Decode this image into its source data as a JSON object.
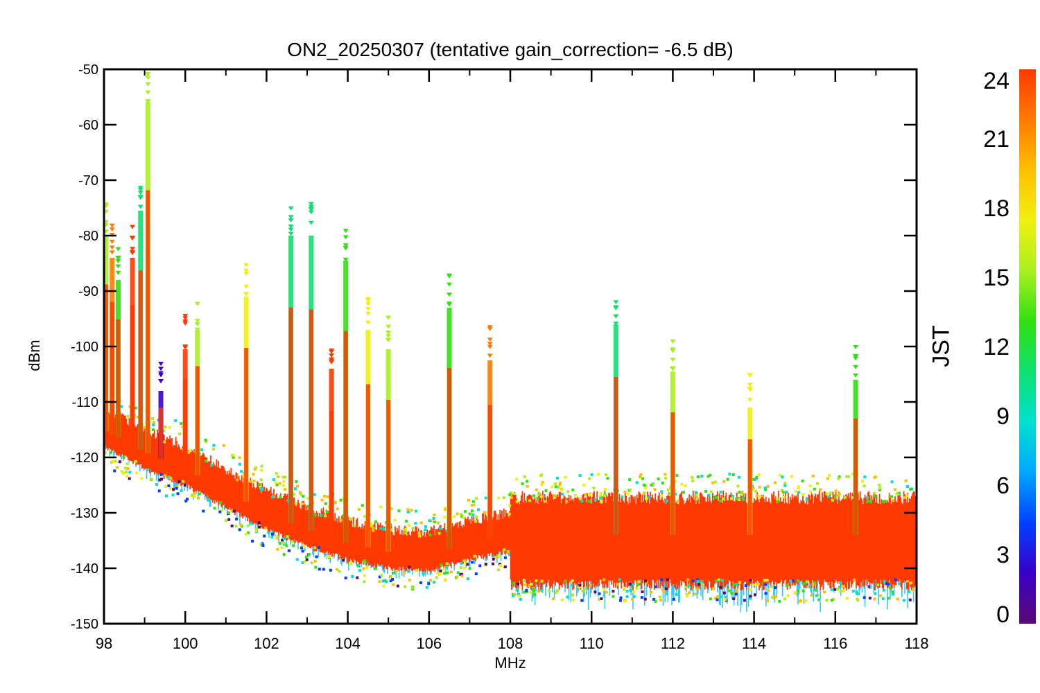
{
  "chart_data": {
    "type": "scatter",
    "title": "ON2_20250307 (tentative gain_correction= -6.5 dB)",
    "xlabel": "MHz",
    "ylabel": "dBm",
    "xlim": [
      98,
      118
    ],
    "ylim": [
      -150,
      -50
    ],
    "x_ticks": [
      "98",
      "100",
      "102",
      "104",
      "106",
      "108",
      "110",
      "112",
      "114",
      "116",
      "118"
    ],
    "y_ticks": [
      "-50",
      "-60",
      "-70",
      "-80",
      "-90",
      "-100",
      "-110",
      "-120",
      "-130",
      "-140",
      "-150"
    ],
    "colorbar": {
      "label": "JST",
      "range": [
        0,
        24
      ],
      "ticks": [
        "0",
        "3",
        "6",
        "9",
        "12",
        "15",
        "18",
        "21",
        "24"
      ],
      "colormap": [
        "#5a0a73",
        "#3a00c8",
        "#0040ff",
        "#00a8ff",
        "#00e0d0",
        "#10e070",
        "#30e010",
        "#a8f020",
        "#f0f010",
        "#ffc000",
        "#ff7a00",
        "#ff3a00"
      ]
    },
    "noise_floor": [
      {
        "x": 98,
        "y": -115
      },
      {
        "x": 99,
        "y": -119
      },
      {
        "x": 100,
        "y": -122
      },
      {
        "x": 101,
        "y": -126
      },
      {
        "x": 102,
        "y": -130
      },
      {
        "x": 103,
        "y": -133
      },
      {
        "x": 104,
        "y": -135.5
      },
      {
        "x": 105,
        "y": -137
      },
      {
        "x": 106,
        "y": -137.5
      },
      {
        "x": 107,
        "y": -135.5
      },
      {
        "x": 107.9,
        "y": -134
      },
      {
        "x": 108.05,
        "y": -134
      },
      {
        "x": 118,
        "y": -134
      }
    ],
    "signals": [
      {
        "x": 98.05,
        "peak": -80,
        "jst": 15
      },
      {
        "x": 98.2,
        "peak": -84,
        "jst": 21
      },
      {
        "x": 98.35,
        "peak": -88,
        "jst": 13
      },
      {
        "x": 98.7,
        "peak": -84,
        "jst": 23
      },
      {
        "x": 98.9,
        "peak": -75.5,
        "jst": 11
      },
      {
        "x": 99.08,
        "peak": -56,
        "jst": 16
      },
      {
        "x": 99.4,
        "peak": -108,
        "jst": 3
      },
      {
        "x": 100.0,
        "peak": -100.5,
        "jst": 23
      },
      {
        "x": 100.3,
        "peak": -97,
        "jst": 15
      },
      {
        "x": 101.5,
        "peak": -91,
        "jst": 17
      },
      {
        "x": 102.6,
        "peak": -80,
        "jst": 10
      },
      {
        "x": 103.1,
        "peak": -80,
        "jst": 10
      },
      {
        "x": 103.6,
        "peak": -104,
        "jst": 23
      },
      {
        "x": 103.95,
        "peak": -84.5,
        "jst": 14
      },
      {
        "x": 104.5,
        "peak": -97,
        "jst": 17
      },
      {
        "x": 105.0,
        "peak": -100.5,
        "jst": 15
      },
      {
        "x": 106.5,
        "peak": -93,
        "jst": 14
      },
      {
        "x": 107.5,
        "peak": -102.5,
        "jst": 22
      },
      {
        "x": 110.6,
        "peak": -96,
        "jst": 10
      },
      {
        "x": 112.0,
        "peak": -104.5,
        "jst": 16
      },
      {
        "x": 113.9,
        "peak": -111,
        "jst": 18
      },
      {
        "x": 116.5,
        "peak": -106,
        "jst": 13
      }
    ]
  }
}
